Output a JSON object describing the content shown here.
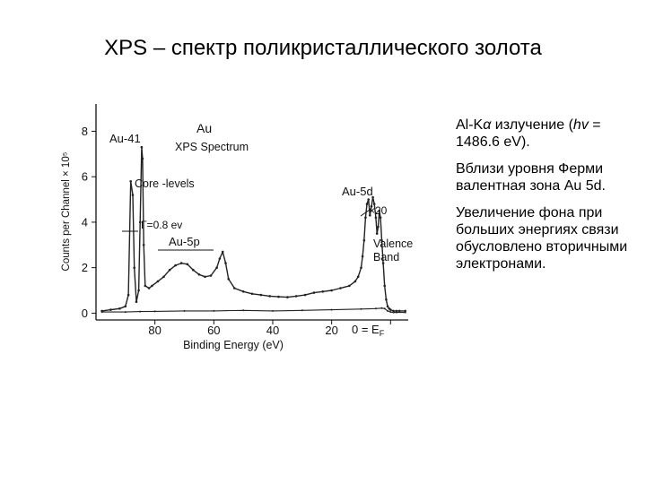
{
  "title": "XPS – спектр поликристаллического золота",
  "side_text": {
    "p1_prefix": "Al-K",
    "p1_alpha": "α",
    "p1_mid": " излучение (",
    "p1_hv": "hv",
    "p1_suffix": " = 1486.6 eV).",
    "p2": "Вблизи уровня Ферми валентная зона Au 5d.",
    "p3": "Увеличение фона при больших энергиях связи обусловлено вторичными электронами."
  },
  "chart_data": {
    "type": "line",
    "title": "Au",
    "subtitle": "XPS Spectrum",
    "xlabel": "Binding Energy (eV)",
    "ylabel": "Counts per Channel × 10⁵",
    "xlim": [
      100,
      -6
    ],
    "ylim": [
      -0.3,
      9.2
    ],
    "x_ticks": [
      80,
      60,
      40,
      20
    ],
    "x_tick_labels": [
      "80",
      "60",
      "40",
      "20"
    ],
    "ef_label": "0 = E",
    "ef_sub": "F",
    "y_ticks": [
      0,
      2,
      4,
      6,
      8
    ],
    "y_tick_labels": [
      "0",
      "2",
      "4",
      "6",
      "8"
    ],
    "annotations": {
      "au41": "Au-41",
      "core": "Core -levels",
      "gamma": "Γ=0.8 ev",
      "au5p": "Au-5p",
      "au5d": "Au-5d",
      "x20": "×20",
      "valence1": "Valence",
      "valence2": "Band"
    },
    "series": [
      {
        "x": [
          98,
          95,
          92,
          90,
          89,
          88.2,
          87.5,
          87,
          86.3,
          85.5,
          85,
          84.5,
          84.2,
          83.8,
          83.3,
          82,
          81,
          79,
          77,
          75,
          73,
          71,
          69,
          67,
          65,
          63,
          61,
          59,
          58,
          57,
          56,
          55,
          53,
          50,
          47,
          44,
          41,
          38,
          35,
          32,
          29,
          26,
          23,
          20,
          17,
          14,
          12,
          11,
          10,
          9.5,
          9,
          8.5,
          8,
          7.5,
          7,
          6.5,
          6,
          5.5,
          5,
          4.6,
          4.2,
          3.8,
          3.4,
          3,
          2.5,
          2,
          1.5,
          1,
          0.5,
          0,
          -1,
          -2,
          -3,
          -5
        ],
        "y": [
          0.1,
          0.15,
          0.2,
          0.3,
          0.8,
          5.8,
          5.2,
          2.0,
          0.5,
          1.0,
          4.0,
          7.3,
          6.8,
          3.0,
          1.2,
          1.1,
          1.2,
          1.4,
          1.6,
          1.9,
          2.1,
          2.2,
          2.15,
          1.9,
          1.7,
          1.6,
          1.65,
          2.0,
          2.4,
          2.7,
          2.2,
          1.5,
          1.1,
          0.95,
          0.85,
          0.8,
          0.75,
          0.72,
          0.7,
          0.75,
          0.8,
          0.9,
          0.95,
          1.0,
          1.1,
          1.2,
          1.4,
          1.6,
          2.0,
          2.5,
          3.2,
          4.2,
          4.8,
          5.0,
          4.3,
          4.7,
          5.1,
          4.8,
          4.2,
          3.5,
          3.8,
          4.5,
          4.2,
          3.2,
          2.2,
          1.2,
          0.6,
          0.3,
          0.2,
          0.15,
          0.1,
          0.1,
          0.1,
          0.1
        ]
      },
      {
        "x": [
          98,
          90,
          85,
          80,
          70,
          60,
          50,
          40,
          30,
          20,
          10,
          5,
          3,
          2,
          1,
          0,
          -1,
          -2,
          -5
        ],
        "y": [
          0.05,
          0.05,
          0.07,
          0.08,
          0.1,
          0.1,
          0.12,
          0.1,
          0.12,
          0.15,
          0.18,
          0.2,
          0.22,
          0.2,
          0.1,
          0.05,
          0.03,
          0.03,
          0.03
        ]
      }
    ]
  }
}
